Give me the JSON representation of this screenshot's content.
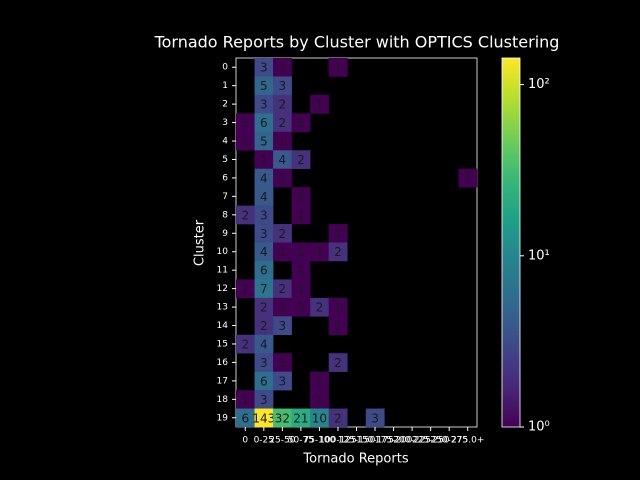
{
  "chart_data": {
    "type": "heatmap",
    "title": "Tornado Reports by Cluster with OPTICS Clustering",
    "x_label": "Tornado Reports",
    "y_label": "Cluster",
    "x_categories": [
      "0",
      "0-25",
      "25-50",
      "50-75",
      "75-100",
      "100-125",
      "125-150",
      "150-175",
      "175-200",
      "200-225",
      "225-250",
      "250-275",
      "275.0+"
    ],
    "y_categories": [
      "0",
      "1",
      "2",
      "3",
      "4",
      "5",
      "6",
      "7",
      "8",
      "9",
      "10",
      "11",
      "12",
      "13",
      "14",
      "15",
      "16",
      "17",
      "18",
      "19"
    ],
    "values": [
      [
        null,
        3,
        1,
        null,
        null,
        1,
        null,
        null,
        null,
        null,
        null,
        null,
        null
      ],
      [
        null,
        5,
        3,
        null,
        null,
        null,
        null,
        null,
        null,
        null,
        null,
        null,
        null
      ],
      [
        null,
        3,
        2,
        null,
        1,
        null,
        null,
        null,
        null,
        null,
        null,
        null,
        null
      ],
      [
        1,
        6,
        2,
        1,
        null,
        null,
        null,
        null,
        null,
        null,
        null,
        null,
        null
      ],
      [
        1,
        5,
        1,
        null,
        null,
        null,
        null,
        null,
        null,
        null,
        null,
        null,
        null
      ],
      [
        null,
        1,
        4,
        2,
        null,
        null,
        null,
        null,
        null,
        null,
        null,
        null,
        null
      ],
      [
        null,
        4,
        1,
        null,
        null,
        null,
        null,
        null,
        null,
        null,
        null,
        null,
        1
      ],
      [
        null,
        4,
        null,
        1,
        null,
        null,
        null,
        null,
        null,
        null,
        null,
        null,
        null
      ],
      [
        2,
        3,
        null,
        1,
        null,
        null,
        null,
        null,
        null,
        null,
        null,
        null,
        null
      ],
      [
        null,
        3,
        2,
        null,
        null,
        1,
        null,
        null,
        null,
        null,
        null,
        null,
        null
      ],
      [
        null,
        4,
        1,
        1,
        1,
        2,
        null,
        null,
        null,
        null,
        null,
        null,
        null
      ],
      [
        null,
        6,
        null,
        1,
        null,
        null,
        null,
        null,
        null,
        null,
        null,
        null,
        null
      ],
      [
        1,
        7,
        2,
        1,
        null,
        null,
        null,
        null,
        null,
        null,
        null,
        null,
        null
      ],
      [
        null,
        2,
        1,
        1,
        2,
        1,
        null,
        null,
        null,
        null,
        null,
        null,
        null
      ],
      [
        null,
        2,
        3,
        null,
        null,
        1,
        null,
        null,
        null,
        null,
        null,
        null,
        null
      ],
      [
        2,
        4,
        null,
        null,
        null,
        null,
        null,
        null,
        null,
        null,
        null,
        null,
        null
      ],
      [
        null,
        3,
        1,
        null,
        null,
        2,
        null,
        null,
        null,
        null,
        null,
        null,
        null
      ],
      [
        null,
        6,
        3,
        null,
        1,
        null,
        null,
        null,
        null,
        null,
        null,
        null,
        null
      ],
      [
        1,
        3,
        null,
        null,
        1,
        null,
        null,
        null,
        null,
        null,
        null,
        null,
        null
      ],
      [
        6,
        143,
        32,
        21,
        10,
        2,
        null,
        3,
        null,
        null,
        null,
        null,
        null
      ]
    ],
    "colormap": "viridis",
    "log_scale": true,
    "clim": [
      1,
      143
    ],
    "cticks": [
      {
        "value": 1,
        "label": "10⁰"
      },
      {
        "value": 10,
        "label": "10¹"
      },
      {
        "value": 100,
        "label": "10²"
      }
    ]
  }
}
